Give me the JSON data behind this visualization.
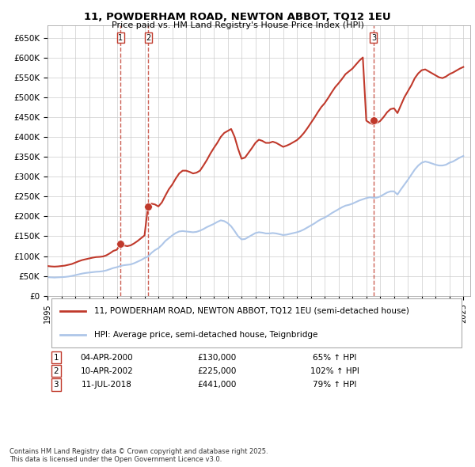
{
  "title": "11, POWDERHAM ROAD, NEWTON ABBOT, TQ12 1EU",
  "subtitle": "Price paid vs. HM Land Registry's House Price Index (HPI)",
  "ylabel": "",
  "xlabel": "",
  "xlim_start": 1995.0,
  "xlim_end": 2025.5,
  "ylim": [
    0,
    680000
  ],
  "yticks": [
    0,
    50000,
    100000,
    150000,
    200000,
    250000,
    300000,
    350000,
    400000,
    450000,
    500000,
    550000,
    600000,
    650000
  ],
  "hpi_color": "#aec6e8",
  "price_color": "#c0392b",
  "sale_marker_color": "#c0392b",
  "background_color": "#ffffff",
  "grid_color": "#cccccc",
  "sales": [
    {
      "label": "1",
      "date_x": 2000.27,
      "price": 130000
    },
    {
      "label": "2",
      "date_x": 2002.28,
      "price": 225000
    },
    {
      "label": "3",
      "date_x": 2018.53,
      "price": 441000
    }
  ],
  "sale_annotations": [
    {
      "num": "1",
      "date": "04-APR-2000",
      "price": "£130,000",
      "pct": "65% ↑ HPI"
    },
    {
      "num": "2",
      "date": "10-APR-2002",
      "price": "£225,000",
      "pct": "102% ↑ HPI"
    },
    {
      "num": "3",
      "date": "11-JUL-2018",
      "price": "£441,000",
      "pct": "79% ↑ HPI"
    }
  ],
  "legend_line1": "11, POWDERHAM ROAD, NEWTON ABBOT, TQ12 1EU (semi-detached house)",
  "legend_line2": "HPI: Average price, semi-detached house, Teignbridge",
  "footnote": "Contains HM Land Registry data © Crown copyright and database right 2025.\nThis data is licensed under the Open Government Licence v3.0.",
  "hpi_data_x": [
    1995.0,
    1995.25,
    1995.5,
    1995.75,
    1996.0,
    1996.25,
    1996.5,
    1996.75,
    1997.0,
    1997.25,
    1997.5,
    1997.75,
    1998.0,
    1998.25,
    1998.5,
    1998.75,
    1999.0,
    1999.25,
    1999.5,
    1999.75,
    2000.0,
    2000.25,
    2000.5,
    2000.75,
    2001.0,
    2001.25,
    2001.5,
    2001.75,
    2002.0,
    2002.25,
    2002.5,
    2002.75,
    2003.0,
    2003.25,
    2003.5,
    2003.75,
    2004.0,
    2004.25,
    2004.5,
    2004.75,
    2005.0,
    2005.25,
    2005.5,
    2005.75,
    2006.0,
    2006.25,
    2006.5,
    2006.75,
    2007.0,
    2007.25,
    2007.5,
    2007.75,
    2008.0,
    2008.25,
    2008.5,
    2008.75,
    2009.0,
    2009.25,
    2009.5,
    2009.75,
    2010.0,
    2010.25,
    2010.5,
    2010.75,
    2011.0,
    2011.25,
    2011.5,
    2011.75,
    2012.0,
    2012.25,
    2012.5,
    2012.75,
    2013.0,
    2013.25,
    2013.5,
    2013.75,
    2014.0,
    2014.25,
    2014.5,
    2014.75,
    2015.0,
    2015.25,
    2015.5,
    2015.75,
    2016.0,
    2016.25,
    2016.5,
    2016.75,
    2017.0,
    2017.25,
    2017.5,
    2017.75,
    2018.0,
    2018.25,
    2018.5,
    2018.75,
    2019.0,
    2019.25,
    2019.5,
    2019.75,
    2020.0,
    2020.25,
    2020.5,
    2020.75,
    2021.0,
    2021.25,
    2021.5,
    2021.75,
    2022.0,
    2022.25,
    2022.5,
    2022.75,
    2023.0,
    2023.25,
    2023.5,
    2023.75,
    2024.0,
    2024.25,
    2024.5,
    2024.75,
    2025.0
  ],
  "hpi_data_y": [
    47000,
    46500,
    46000,
    46500,
    47000,
    47500,
    48500,
    50000,
    52000,
    54000,
    56000,
    57500,
    58500,
    59500,
    60500,
    61000,
    62000,
    64000,
    67000,
    70000,
    72000,
    75000,
    77000,
    78000,
    79000,
    82000,
    86000,
    90000,
    95000,
    99000,
    108000,
    115000,
    120000,
    128000,
    138000,
    145000,
    152000,
    158000,
    162000,
    163000,
    162000,
    161000,
    160000,
    161000,
    164000,
    168000,
    173000,
    177000,
    181000,
    186000,
    190000,
    188000,
    183000,
    175000,
    163000,
    150000,
    142000,
    143000,
    148000,
    153000,
    158000,
    160000,
    159000,
    157000,
    157000,
    158000,
    157000,
    155000,
    153000,
    154000,
    156000,
    158000,
    160000,
    163000,
    167000,
    172000,
    177000,
    182000,
    188000,
    193000,
    197000,
    202000,
    208000,
    213000,
    218000,
    223000,
    227000,
    229000,
    232000,
    236000,
    240000,
    243000,
    246000,
    248000,
    247000,
    247000,
    250000,
    255000,
    260000,
    263000,
    263000,
    255000,
    268000,
    280000,
    292000,
    305000,
    318000,
    328000,
    335000,
    338000,
    336000,
    333000,
    330000,
    328000,
    328000,
    330000,
    335000,
    338000,
    343000,
    348000,
    352000
  ],
  "price_data_x": [
    1995.0,
    1995.25,
    1995.5,
    1995.75,
    1996.0,
    1996.25,
    1996.5,
    1996.75,
    1997.0,
    1997.25,
    1997.5,
    1997.75,
    1998.0,
    1998.25,
    1998.5,
    1998.75,
    1999.0,
    1999.25,
    1999.5,
    1999.75,
    2000.0,
    2000.25,
    2000.5,
    2000.75,
    2001.0,
    2001.25,
    2001.5,
    2001.75,
    2002.0,
    2002.25,
    2002.5,
    2002.75,
    2003.0,
    2003.25,
    2003.5,
    2003.75,
    2004.0,
    2004.25,
    2004.5,
    2004.75,
    2005.0,
    2005.25,
    2005.5,
    2005.75,
    2006.0,
    2006.25,
    2006.5,
    2006.75,
    2007.0,
    2007.25,
    2007.5,
    2007.75,
    2008.0,
    2008.25,
    2008.5,
    2008.75,
    2009.0,
    2009.25,
    2009.5,
    2009.75,
    2010.0,
    2010.25,
    2010.5,
    2010.75,
    2011.0,
    2011.25,
    2011.5,
    2011.75,
    2012.0,
    2012.25,
    2012.5,
    2012.75,
    2013.0,
    2013.25,
    2013.5,
    2013.75,
    2014.0,
    2014.25,
    2014.5,
    2014.75,
    2015.0,
    2015.25,
    2015.5,
    2015.75,
    2016.0,
    2016.25,
    2016.5,
    2016.75,
    2017.0,
    2017.25,
    2017.5,
    2017.75,
    2018.0,
    2018.25,
    2018.5,
    2018.75,
    2019.0,
    2019.25,
    2019.5,
    2019.75,
    2020.0,
    2020.25,
    2020.5,
    2020.75,
    2021.0,
    2021.25,
    2021.5,
    2021.75,
    2022.0,
    2022.25,
    2022.5,
    2022.75,
    2023.0,
    2023.25,
    2023.5,
    2023.75,
    2024.0,
    2024.25,
    2024.5,
    2024.75,
    2025.0
  ],
  "price_data_y": [
    75000,
    74000,
    73500,
    74000,
    75000,
    76000,
    78000,
    80000,
    83500,
    87000,
    90000,
    92000,
    94000,
    96000,
    97500,
    98000,
    99000,
    102000,
    107000,
    113000,
    116000,
    130000,
    127000,
    125000,
    127000,
    132000,
    138000,
    145000,
    152000,
    225000,
    232000,
    230000,
    225000,
    235000,
    252000,
    268000,
    280000,
    295000,
    308000,
    315000,
    315000,
    312000,
    308000,
    310000,
    315000,
    328000,
    342000,
    358000,
    372000,
    385000,
    400000,
    410000,
    415000,
    420000,
    400000,
    370000,
    345000,
    348000,
    360000,
    372000,
    385000,
    393000,
    390000,
    385000,
    385000,
    388000,
    385000,
    380000,
    375000,
    378000,
    382000,
    387000,
    392000,
    400000,
    410000,
    422000,
    435000,
    448000,
    462000,
    475000,
    485000,
    498000,
    512000,
    525000,
    535000,
    546000,
    558000,
    565000,
    572000,
    582000,
    592000,
    600000,
    441000,
    435000,
    432000,
    435000,
    440000,
    450000,
    462000,
    470000,
    472000,
    460000,
    480000,
    500000,
    515000,
    530000,
    548000,
    560000,
    568000,
    570000,
    565000,
    560000,
    555000,
    550000,
    548000,
    552000,
    558000,
    562000,
    567000,
    572000,
    576000
  ]
}
